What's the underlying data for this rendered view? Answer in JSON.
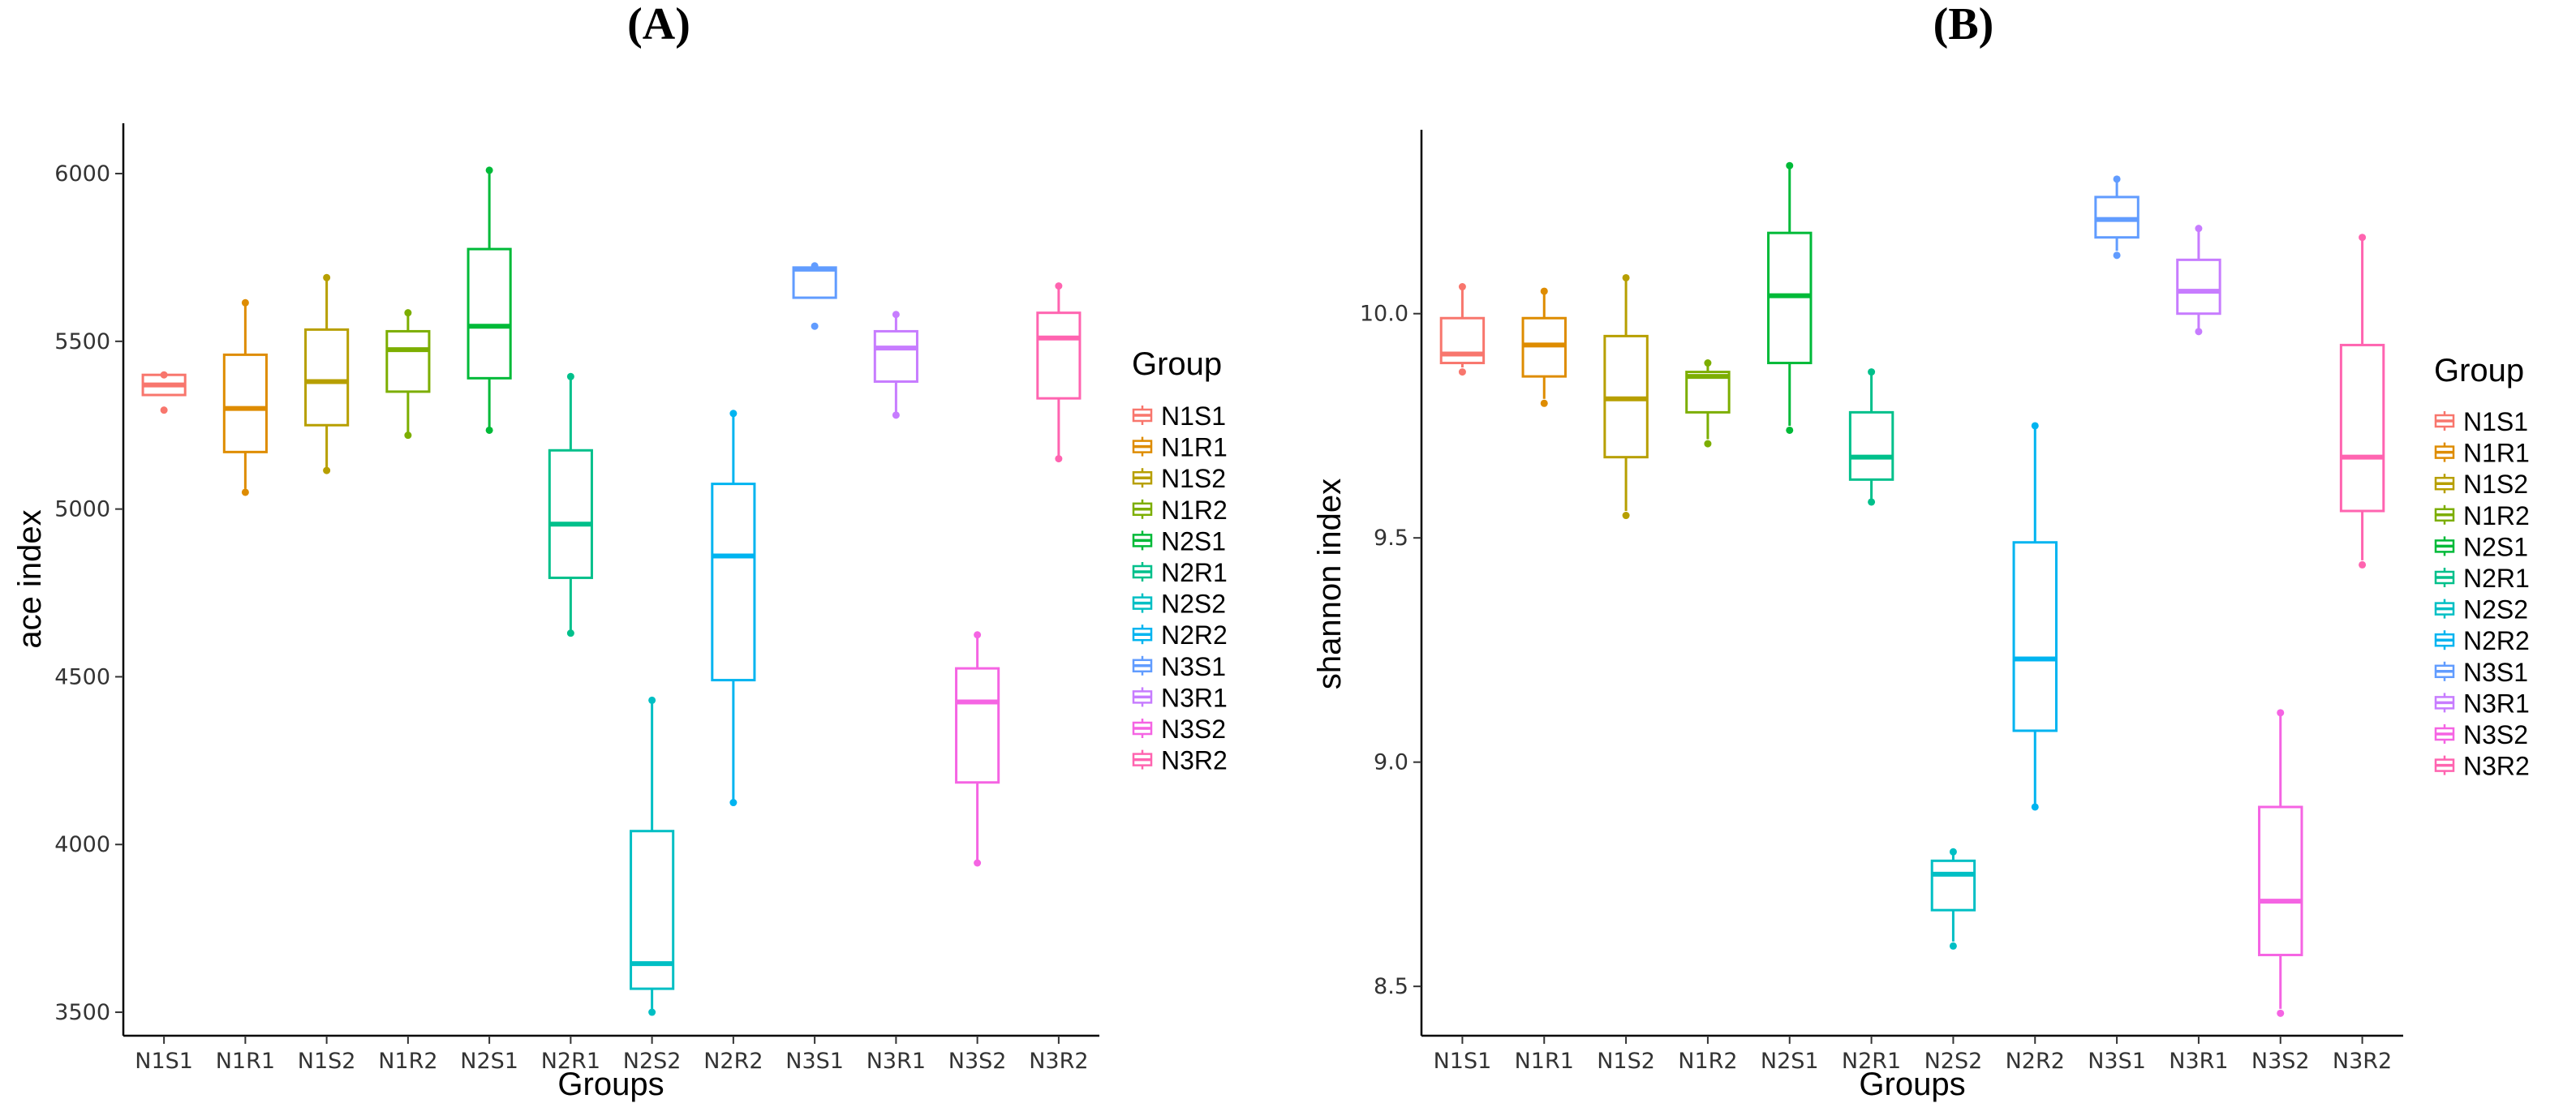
{
  "chart_data": [
    {
      "type": "boxplot",
      "panel_label": "(A)",
      "xlabel": "Groups",
      "ylabel": "ace index",
      "ylim": [
        3430,
        6150
      ],
      "yticks": [
        3500,
        4000,
        4500,
        5000,
        5500,
        6000
      ],
      "ytick_labels": [
        "3500",
        "4000",
        "4500",
        "5000",
        "5500",
        "6000"
      ],
      "legend_title": "Group",
      "legend_position": "right",
      "categories": [
        "N1S1",
        "N1R1",
        "N1S2",
        "N1R2",
        "N2S1",
        "N2R1",
        "N2S2",
        "N2R2",
        "N3S1",
        "N3R1",
        "N3S2",
        "N3R2"
      ],
      "colors": [
        "#F8766D",
        "#DE8C00",
        "#B79F00",
        "#7CAE00",
        "#00BA38",
        "#00C08B",
        "#00BFC4",
        "#00B4F0",
        "#619CFF",
        "#C77CFF",
        "#F564E3",
        "#FF64B0"
      ],
      "boxes": [
        {
          "min": 5340,
          "q1": 5340,
          "median": 5370,
          "q3": 5400,
          "max": 5400,
          "points": [
            5295,
            5400
          ]
        },
        {
          "min": 5060,
          "q1": 5170,
          "median": 5300,
          "q3": 5460,
          "max": 5620,
          "points": [
            5050,
            5615
          ]
        },
        {
          "min": 5120,
          "q1": 5250,
          "median": 5380,
          "q3": 5535,
          "max": 5690,
          "points": [
            5115,
            5690
          ]
        },
        {
          "min": 5225,
          "q1": 5350,
          "median": 5475,
          "q3": 5530,
          "max": 5585,
          "points": [
            5220,
            5585
          ]
        },
        {
          "min": 5240,
          "q1": 5390,
          "median": 5545,
          "q3": 5775,
          "max": 6010,
          "points": [
            5235,
            6010
          ]
        },
        {
          "min": 4640,
          "q1": 4795,
          "median": 4955,
          "q3": 5175,
          "max": 5395,
          "points": [
            4630,
            5395
          ]
        },
        {
          "min": 3510,
          "q1": 3570,
          "median": 3645,
          "q3": 4040,
          "max": 4430,
          "points": [
            3500,
            4430
          ]
        },
        {
          "min": 4125,
          "q1": 4490,
          "median": 4860,
          "q3": 5075,
          "max": 5285,
          "points": [
            4125,
            5285
          ]
        },
        {
          "min": 5630,
          "q1": 5630,
          "median": 5715,
          "q3": 5720,
          "max": 5725,
          "points": [
            5545,
            5725
          ]
        },
        {
          "min": 5285,
          "q1": 5380,
          "median": 5480,
          "q3": 5530,
          "max": 5580,
          "points": [
            5280,
            5580
          ]
        },
        {
          "min": 3945,
          "q1": 4185,
          "median": 4425,
          "q3": 4525,
          "max": 4625,
          "points": [
            3945,
            4625
          ]
        },
        {
          "min": 5150,
          "q1": 5330,
          "median": 5510,
          "q3": 5585,
          "max": 5660,
          "points": [
            5150,
            5665
          ]
        }
      ]
    },
    {
      "type": "boxplot",
      "panel_label": "(B)",
      "xlabel": "Groups",
      "ylabel": "shannon index",
      "ylim": [
        8.39,
        10.41
      ],
      "yticks": [
        8.5,
        9.0,
        9.5,
        10.0
      ],
      "ytick_labels": [
        "8.5",
        "9.0",
        "9.5",
        "10.0"
      ],
      "legend_title": "Group",
      "legend_position": "right",
      "categories": [
        "N1S1",
        "N1R1",
        "N1S2",
        "N1R2",
        "N2S1",
        "N2R1",
        "N2S2",
        "N2R2",
        "N3S1",
        "N3R1",
        "N3S2",
        "N3R2"
      ],
      "colors": [
        "#F8766D",
        "#DE8C00",
        "#B79F00",
        "#7CAE00",
        "#00BA38",
        "#00C08B",
        "#00BFC4",
        "#00B4F0",
        "#619CFF",
        "#C77CFF",
        "#F564E3",
        "#FF64B0"
      ],
      "boxes": [
        {
          "min": 9.88,
          "q1": 9.89,
          "median": 9.91,
          "q3": 9.99,
          "max": 10.06,
          "points": [
            9.87,
            10.06
          ]
        },
        {
          "min": 9.81,
          "q1": 9.86,
          "median": 9.93,
          "q3": 9.99,
          "max": 10.05,
          "points": [
            9.8,
            10.05
          ]
        },
        {
          "min": 9.56,
          "q1": 9.68,
          "median": 9.81,
          "q3": 9.95,
          "max": 10.08,
          "points": [
            9.55,
            10.08
          ]
        },
        {
          "min": 9.72,
          "q1": 9.78,
          "median": 9.86,
          "q3": 9.87,
          "max": 9.89,
          "points": [
            9.71,
            9.89
          ]
        },
        {
          "min": 9.75,
          "q1": 9.89,
          "median": 10.04,
          "q3": 10.18,
          "max": 10.33,
          "points": [
            9.74,
            10.33
          ]
        },
        {
          "min": 9.58,
          "q1": 9.63,
          "median": 9.68,
          "q3": 9.78,
          "max": 9.87,
          "points": [
            9.58,
            9.87
          ]
        },
        {
          "min": 8.6,
          "q1": 8.67,
          "median": 8.75,
          "q3": 8.78,
          "max": 8.8,
          "points": [
            8.59,
            8.8
          ]
        },
        {
          "min": 8.9,
          "q1": 9.07,
          "median": 9.23,
          "q3": 9.49,
          "max": 9.75,
          "points": [
            8.9,
            9.75
          ]
        },
        {
          "min": 10.14,
          "q1": 10.17,
          "median": 10.21,
          "q3": 10.26,
          "max": 10.3,
          "points": [
            10.13,
            10.3
          ]
        },
        {
          "min": 9.96,
          "q1": 10.0,
          "median": 10.05,
          "q3": 10.12,
          "max": 10.19,
          "points": [
            9.96,
            10.19
          ]
        },
        {
          "min": 8.45,
          "q1": 8.57,
          "median": 8.69,
          "q3": 8.9,
          "max": 9.11,
          "points": [
            8.44,
            9.11
          ]
        },
        {
          "min": 9.45,
          "q1": 9.56,
          "median": 9.68,
          "q3": 9.93,
          "max": 10.17,
          "points": [
            9.44,
            10.17
          ]
        }
      ]
    }
  ]
}
